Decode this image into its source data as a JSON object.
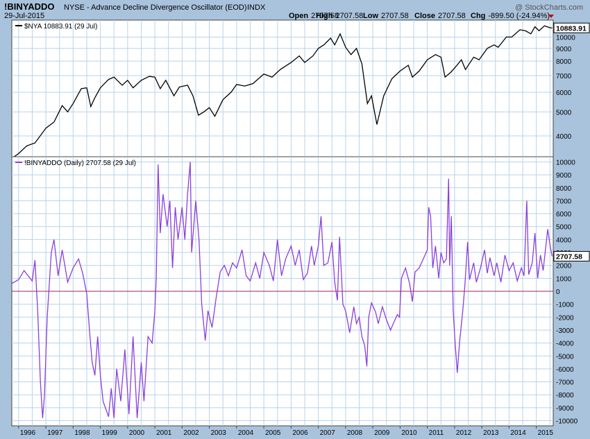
{
  "header": {
    "symbol": "!BINYADDO",
    "description": "NYSE - Advance Decline Divergence Oscillator (EOD)",
    "exchange": "INDX",
    "date": "29-Jul-2015",
    "watermark": "@ StockCharts.com",
    "ohlc": [
      {
        "label": "Open",
        "value": "2707.58"
      },
      {
        "label": "High",
        "value": "2707.58"
      },
      {
        "label": "Low",
        "value": "2707.58"
      },
      {
        "label": "Close",
        "value": "2707.58"
      },
      {
        "label": "Chg",
        "value": "-899.50 (-24.94%)"
      }
    ],
    "chg_arrow_color": "#cc0000"
  },
  "chart_data": [
    {
      "type": "line",
      "legend": "$NYA 10883.91 (29 Jul)",
      "series_color": "#000000",
      "last_value_label": "10883.91",
      "scale": "log",
      "ylim": [
        3300,
        11700
      ],
      "yticks": [
        4000,
        5000,
        6000,
        7000,
        8000,
        9000,
        10000
      ],
      "points": [
        [
          1995.75,
          3250
        ],
        [
          1996.0,
          3400
        ],
        [
          1996.3,
          3650
        ],
        [
          1996.6,
          3750
        ],
        [
          1997.0,
          4300
        ],
        [
          1997.3,
          4550
        ],
        [
          1997.6,
          5300
        ],
        [
          1997.8,
          5000
        ],
        [
          1998.0,
          5400
        ],
        [
          1998.3,
          6200
        ],
        [
          1998.5,
          6250
        ],
        [
          1998.65,
          5250
        ],
        [
          1998.8,
          5700
        ],
        [
          1999.0,
          6250
        ],
        [
          1999.3,
          6750
        ],
        [
          1999.5,
          6900
        ],
        [
          1999.8,
          6400
        ],
        [
          2000.0,
          6700
        ],
        [
          2000.2,
          6250
        ],
        [
          2000.5,
          6700
        ],
        [
          2000.8,
          6950
        ],
        [
          2001.0,
          6900
        ],
        [
          2001.2,
          6200
        ],
        [
          2001.4,
          6700
        ],
        [
          2001.7,
          5800
        ],
        [
          2001.9,
          6300
        ],
        [
          2002.2,
          6400
        ],
        [
          2002.4,
          5800
        ],
        [
          2002.6,
          4850
        ],
        [
          2002.8,
          5000
        ],
        [
          2003.0,
          5200
        ],
        [
          2003.2,
          4800
        ],
        [
          2003.5,
          5600
        ],
        [
          2003.8,
          6000
        ],
        [
          2004.0,
          6450
        ],
        [
          2004.3,
          6350
        ],
        [
          2004.6,
          6500
        ],
        [
          2005.0,
          7100
        ],
        [
          2005.3,
          6900
        ],
        [
          2005.6,
          7400
        ],
        [
          2006.0,
          7900
        ],
        [
          2006.3,
          8400
        ],
        [
          2006.5,
          7900
        ],
        [
          2006.8,
          8400
        ],
        [
          2007.0,
          9000
        ],
        [
          2007.2,
          9300
        ],
        [
          2007.45,
          9900
        ],
        [
          2007.6,
          9300
        ],
        [
          2007.8,
          10300
        ],
        [
          2008.0,
          9100
        ],
        [
          2008.2,
          8500
        ],
        [
          2008.4,
          9000
        ],
        [
          2008.6,
          7800
        ],
        [
          2008.8,
          5400
        ],
        [
          2008.95,
          5800
        ],
        [
          2009.15,
          4450
        ],
        [
          2009.4,
          5800
        ],
        [
          2009.7,
          6800
        ],
        [
          2010.0,
          7300
        ],
        [
          2010.3,
          7700
        ],
        [
          2010.45,
          6900
        ],
        [
          2010.7,
          7300
        ],
        [
          2011.0,
          8100
        ],
        [
          2011.3,
          8500
        ],
        [
          2011.5,
          8300
        ],
        [
          2011.65,
          6900
        ],
        [
          2011.85,
          7200
        ],
        [
          2012.0,
          7500
        ],
        [
          2012.25,
          8100
        ],
        [
          2012.4,
          7400
        ],
        [
          2012.7,
          8300
        ],
        [
          2012.9,
          8100
        ],
        [
          2013.2,
          9000
        ],
        [
          2013.45,
          9300
        ],
        [
          2013.6,
          9100
        ],
        [
          2013.9,
          10000
        ],
        [
          2014.1,
          10000
        ],
        [
          2014.4,
          10700
        ],
        [
          2014.6,
          10600
        ],
        [
          2014.8,
          10300
        ],
        [
          2014.95,
          11000
        ],
        [
          2015.1,
          10600
        ],
        [
          2015.3,
          11100
        ],
        [
          2015.5,
          10900
        ],
        [
          2015.58,
          10883.91
        ]
      ]
    },
    {
      "type": "line",
      "legend": "!BINYADDO (Daily) 2707.58 (29 Jul)",
      "series_color": "#8b3fd9",
      "zero_line_color": "#a0205c",
      "last_value_label": "2707.58",
      "ylim": [
        -10400,
        10400
      ],
      "yticks": [
        10000,
        9000,
        8000,
        7000,
        6000,
        5000,
        4000,
        3000,
        2000,
        1000,
        0,
        -1000,
        -2000,
        -3000,
        -4000,
        -5000,
        -6000,
        -7000,
        -8000,
        -9000,
        -10000
      ],
      "points": [
        [
          1995.75,
          600
        ],
        [
          1996.0,
          900
        ],
        [
          1996.2,
          1600
        ],
        [
          1996.5,
          800
        ],
        [
          1996.6,
          2400
        ],
        [
          1996.7,
          -1500
        ],
        [
          1996.8,
          -7000
        ],
        [
          1996.88,
          -9800
        ],
        [
          1996.95,
          -8000
        ],
        [
          1997.05,
          -2000
        ],
        [
          1997.2,
          3000
        ],
        [
          1997.3,
          4000
        ],
        [
          1997.45,
          1200
        ],
        [
          1997.6,
          3200
        ],
        [
          1997.8,
          700
        ],
        [
          1998.0,
          1800
        ],
        [
          1998.2,
          2500
        ],
        [
          1998.35,
          1400
        ],
        [
          1998.5,
          -200
        ],
        [
          1998.6,
          -3000
        ],
        [
          1998.7,
          -5500
        ],
        [
          1998.8,
          -6500
        ],
        [
          1998.9,
          -3500
        ],
        [
          1999.0,
          -6500
        ],
        [
          1999.1,
          -8500
        ],
        [
          1999.3,
          -9700
        ],
        [
          1999.4,
          -7500
        ],
        [
          1999.5,
          -9800
        ],
        [
          1999.6,
          -6000
        ],
        [
          1999.75,
          -8500
        ],
        [
          1999.9,
          -4500
        ],
        [
          2000.05,
          -9500
        ],
        [
          2000.2,
          -3500
        ],
        [
          2000.35,
          -9800
        ],
        [
          2000.5,
          -5500
        ],
        [
          2000.6,
          -8500
        ],
        [
          2000.75,
          -3500
        ],
        [
          2000.9,
          -4000
        ],
        [
          2001.0,
          -1500
        ],
        [
          2001.05,
          1000
        ],
        [
          2001.12,
          9800
        ],
        [
          2001.2,
          4500
        ],
        [
          2001.3,
          7500
        ],
        [
          2001.45,
          5000
        ],
        [
          2001.55,
          7000
        ],
        [
          2001.65,
          1800
        ],
        [
          2001.75,
          6500
        ],
        [
          2001.85,
          4000
        ],
        [
          2002.0,
          6500
        ],
        [
          2002.1,
          4000
        ],
        [
          2002.2,
          7500
        ],
        [
          2002.3,
          10000
        ],
        [
          2002.35,
          3000
        ],
        [
          2002.5,
          7000
        ],
        [
          2002.62,
          4000
        ],
        [
          2002.72,
          -1000
        ],
        [
          2002.85,
          -3800
        ],
        [
          2002.95,
          -1500
        ],
        [
          2003.1,
          -2800
        ],
        [
          2003.25,
          -500
        ],
        [
          2003.4,
          1500
        ],
        [
          2003.55,
          2000
        ],
        [
          2003.7,
          1200
        ],
        [
          2003.85,
          2200
        ],
        [
          2004.0,
          1800
        ],
        [
          2004.2,
          3200
        ],
        [
          2004.35,
          1200
        ],
        [
          2004.5,
          800
        ],
        [
          2004.7,
          2200
        ],
        [
          2004.85,
          1000
        ],
        [
          2005.0,
          3000
        ],
        [
          2005.2,
          2000
        ],
        [
          2005.35,
          800
        ],
        [
          2005.5,
          4000
        ],
        [
          2005.65,
          1200
        ],
        [
          2005.8,
          2500
        ],
        [
          2006.0,
          3500
        ],
        [
          2006.15,
          2000
        ],
        [
          2006.3,
          3200
        ],
        [
          2006.45,
          900
        ],
        [
          2006.6,
          1400
        ],
        [
          2006.75,
          3500
        ],
        [
          2006.85,
          2000
        ],
        [
          2007.0,
          3500
        ],
        [
          2007.1,
          5800
        ],
        [
          2007.2,
          2000
        ],
        [
          2007.35,
          2200
        ],
        [
          2007.5,
          3800
        ],
        [
          2007.6,
          700
        ],
        [
          2007.7,
          -700
        ],
        [
          2007.78,
          4200
        ],
        [
          2007.9,
          -1000
        ],
        [
          2008.0,
          -1500
        ],
        [
          2008.15,
          -3200
        ],
        [
          2008.3,
          -1200
        ],
        [
          2008.4,
          -2500
        ],
        [
          2008.5,
          -2000
        ],
        [
          2008.6,
          -3500
        ],
        [
          2008.7,
          -4200
        ],
        [
          2008.78,
          -5800
        ],
        [
          2008.85,
          -2000
        ],
        [
          2008.95,
          -900
        ],
        [
          2009.1,
          -1600
        ],
        [
          2009.2,
          -2500
        ],
        [
          2009.35,
          -1200
        ],
        [
          2009.5,
          -2200
        ],
        [
          2009.65,
          -3000
        ],
        [
          2009.75,
          -2500
        ],
        [
          2009.9,
          -1800
        ],
        [
          2009.98,
          -2000
        ],
        [
          2010.05,
          1000
        ],
        [
          2010.2,
          1800
        ],
        [
          2010.35,
          600
        ],
        [
          2010.45,
          -800
        ],
        [
          2010.55,
          1500
        ],
        [
          2010.7,
          1800
        ],
        [
          2010.85,
          2500
        ],
        [
          2011.0,
          3200
        ],
        [
          2011.05,
          6500
        ],
        [
          2011.12,
          5800
        ],
        [
          2011.2,
          1800
        ],
        [
          2011.3,
          3500
        ],
        [
          2011.42,
          1000
        ],
        [
          2011.5,
          3000
        ],
        [
          2011.6,
          2200
        ],
        [
          2011.7,
          2500
        ],
        [
          2011.78,
          8700
        ],
        [
          2011.82,
          2000
        ],
        [
          2011.88,
          5800
        ],
        [
          2011.95,
          -1500
        ],
        [
          2012.02,
          -4000
        ],
        [
          2012.1,
          -6300
        ],
        [
          2012.18,
          -4000
        ],
        [
          2012.3,
          -1500
        ],
        [
          2012.38,
          500
        ],
        [
          2012.48,
          3800
        ],
        [
          2012.55,
          900
        ],
        [
          2012.7,
          2200
        ],
        [
          2012.8,
          700
        ],
        [
          2012.95,
          1800
        ],
        [
          2013.1,
          3200
        ],
        [
          2013.2,
          1400
        ],
        [
          2013.3,
          2600
        ],
        [
          2013.45,
          1200
        ],
        [
          2013.55,
          2200
        ],
        [
          2013.7,
          700
        ],
        [
          2013.85,
          2800
        ],
        [
          2014.0,
          1600
        ],
        [
          2014.15,
          2200
        ],
        [
          2014.3,
          800
        ],
        [
          2014.45,
          1800
        ],
        [
          2014.55,
          1200
        ],
        [
          2014.65,
          7000
        ],
        [
          2014.72,
          1300
        ],
        [
          2014.85,
          2200
        ],
        [
          2014.95,
          4500
        ],
        [
          2015.05,
          1000
        ],
        [
          2015.15,
          2800
        ],
        [
          2015.25,
          1600
        ],
        [
          2015.35,
          3500
        ],
        [
          2015.42,
          4800
        ],
        [
          2015.5,
          3600
        ],
        [
          2015.58,
          2707.58
        ]
      ]
    }
  ],
  "x_axis": {
    "labels": [
      "1996",
      "1997",
      "1998",
      "1999",
      "2000",
      "2001",
      "2002",
      "2003",
      "2004",
      "2005",
      "2006",
      "2007",
      "2008",
      "2009",
      "2010",
      "2011",
      "2012",
      "2013",
      "2014",
      "2015"
    ]
  }
}
